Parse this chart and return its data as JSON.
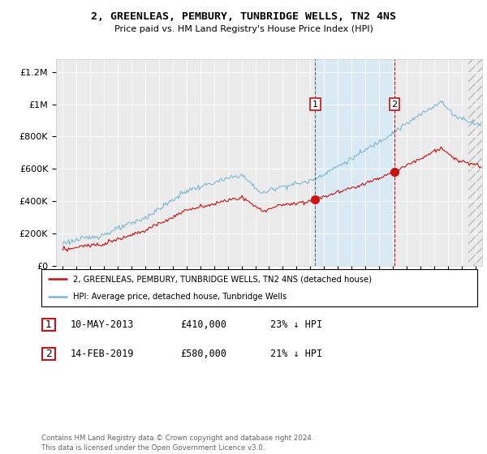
{
  "title": "2, GREENLEAS, PEMBURY, TUNBRIDGE WELLS, TN2 4NS",
  "subtitle": "Price paid vs. HM Land Registry's House Price Index (HPI)",
  "ylabel_ticks": [
    "£0",
    "£200K",
    "£400K",
    "£600K",
    "£800K",
    "£1M",
    "£1.2M"
  ],
  "ytick_values": [
    0,
    200000,
    400000,
    600000,
    800000,
    1000000,
    1200000
  ],
  "ylim": [
    0,
    1280000
  ],
  "xlim_start": 1994.5,
  "xlim_end": 2025.5,
  "sale1_x": 2013.36,
  "sale1_price": 410000,
  "sale1_label": "1",
  "sale1_date": "10-MAY-2013",
  "sale1_pct": "23% ↓ HPI",
  "sale2_x": 2019.12,
  "sale2_price": 580000,
  "sale2_label": "2",
  "sale2_date": "14-FEB-2019",
  "sale2_pct": "21% ↓ HPI",
  "legend_line1": "2, GREENLEAS, PEMBURY, TUNBRIDGE WELLS, TN2 4NS (detached house)",
  "legend_line2": "HPI: Average price, detached house, Tunbridge Wells",
  "footer": "Contains HM Land Registry data © Crown copyright and database right 2024.\nThis data is licensed under the Open Government Licence v3.0.",
  "hpi_color": "#7ab8d8",
  "price_color": "#cc1111",
  "shade_color": "#daeaf5",
  "plot_bg": "#ebebeb",
  "grid_color": "#ffffff",
  "fig_bg": "#ffffff"
}
